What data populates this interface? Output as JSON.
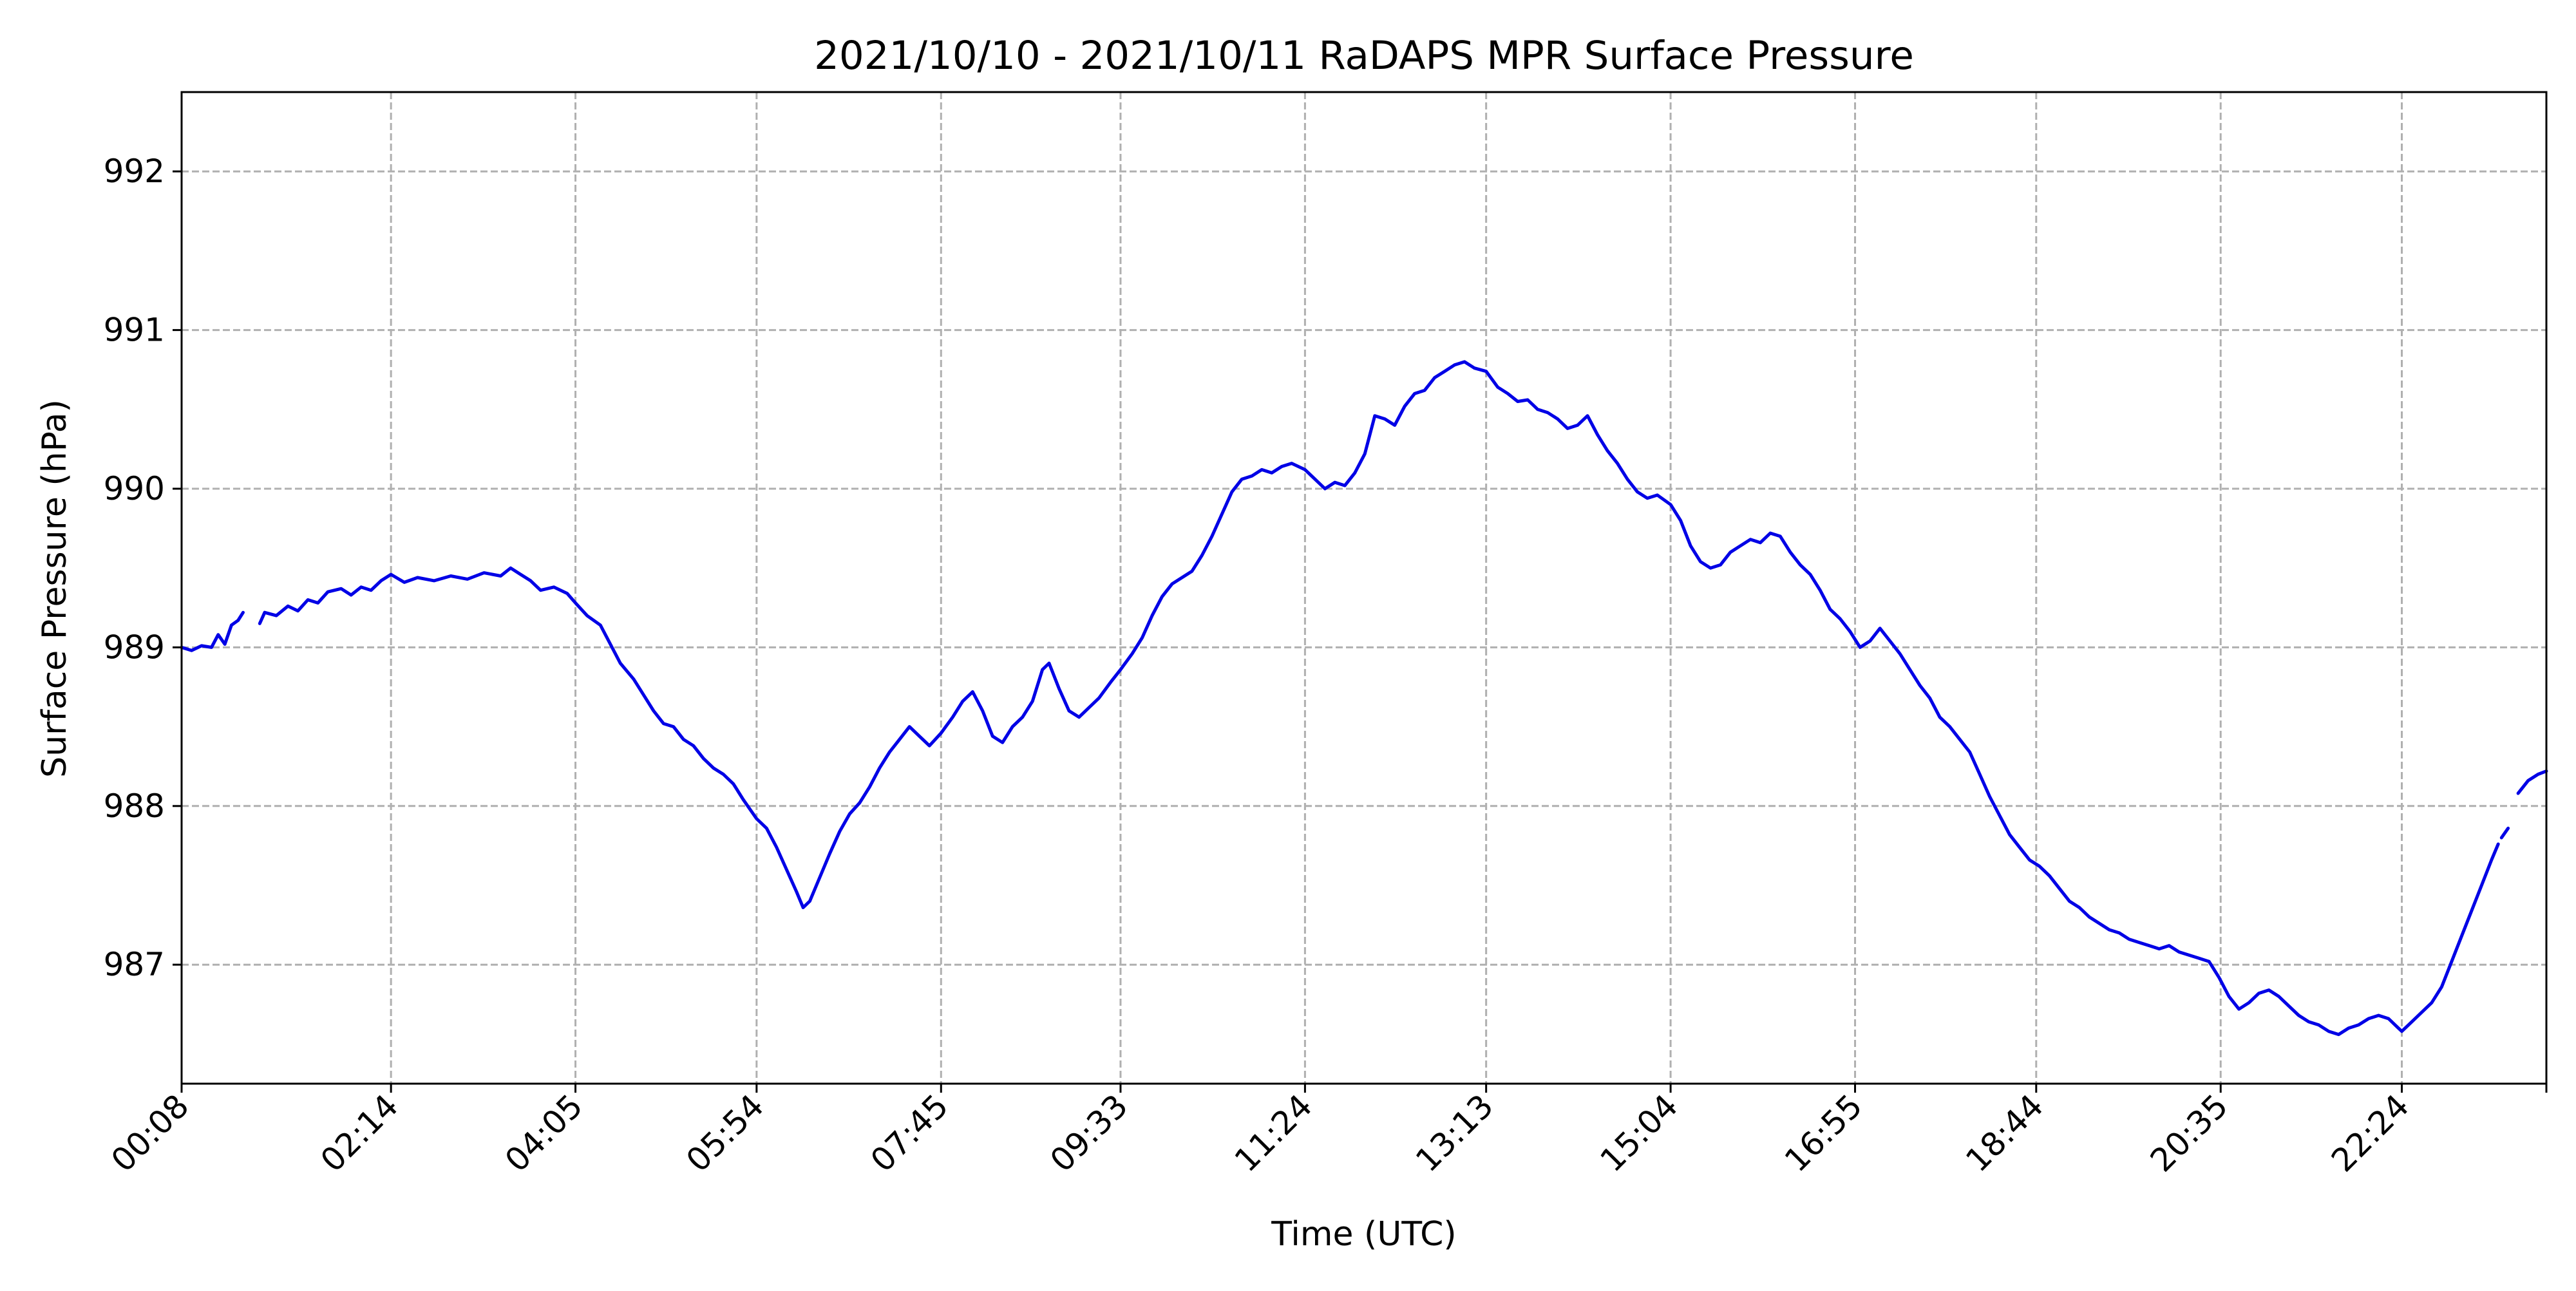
{
  "chart_data": {
    "type": "line",
    "title": "2021/10/10 - 2021/10/11 RaDAPS MPR Surface Pressure",
    "xlabel": "Time (UTC)",
    "ylabel": "Surface Pressure (hPa)",
    "x_ticks": [
      "00:08",
      "02:14",
      "04:05",
      "05:54",
      "07:45",
      "09:33",
      "11:24",
      "13:13",
      "15:04",
      "16:55",
      "18:44",
      "20:35",
      "22:24"
    ],
    "y_ticks": [
      987,
      988,
      989,
      990,
      991,
      992
    ],
    "xlim": [
      "00:08",
      "23:51"
    ],
    "ylim": [
      986.25,
      992.5
    ],
    "grid": true,
    "line_color": "#0000e6",
    "series": [
      {
        "segments": [
          [
            [
              "00:08",
              989.0
            ],
            [
              "00:14",
              988.98
            ],
            [
              "00:20",
              989.01
            ],
            [
              "00:26",
              989.0
            ],
            [
              "00:30",
              989.08
            ],
            [
              "00:34",
              989.02
            ],
            [
              "00:38",
              989.14
            ],
            [
              "00:42",
              989.17
            ],
            [
              "00:45",
              989.22
            ]
          ],
          [
            [
              "00:55",
              989.15
            ],
            [
              "00:58",
              989.22
            ],
            [
              "01:05",
              989.2
            ],
            [
              "01:12",
              989.26
            ],
            [
              "01:18",
              989.23
            ],
            [
              "01:24",
              989.3
            ],
            [
              "01:30",
              989.28
            ],
            [
              "01:36",
              989.35
            ],
            [
              "01:44",
              989.37
            ],
            [
              "01:50",
              989.33
            ],
            [
              "01:56",
              989.38
            ],
            [
              "02:02",
              989.36
            ],
            [
              "02:08",
              989.42
            ],
            [
              "02:14",
              989.46
            ],
            [
              "02:22",
              989.41
            ],
            [
              "02:30",
              989.44
            ],
            [
              "02:40",
              989.42
            ],
            [
              "02:50",
              989.45
            ],
            [
              "03:00",
              989.43
            ],
            [
              "03:10",
              989.47
            ],
            [
              "03:20",
              989.45
            ],
            [
              "03:26",
              989.5
            ],
            [
              "03:32",
              989.46
            ],
            [
              "03:38",
              989.42
            ],
            [
              "03:44",
              989.36
            ],
            [
              "03:52",
              989.38
            ],
            [
              "04:00",
              989.34
            ],
            [
              "04:05",
              989.28
            ],
            [
              "04:12",
              989.2
            ],
            [
              "04:20",
              989.14
            ],
            [
              "04:26",
              989.02
            ],
            [
              "04:32",
              988.9
            ],
            [
              "04:40",
              988.8
            ],
            [
              "04:46",
              988.7
            ],
            [
              "04:52",
              988.6
            ],
            [
              "04:58",
              988.52
            ],
            [
              "05:04",
              988.5
            ],
            [
              "05:10",
              988.42
            ],
            [
              "05:16",
              988.38
            ],
            [
              "05:22",
              988.3
            ],
            [
              "05:28",
              988.24
            ],
            [
              "05:34",
              988.2
            ],
            [
              "05:40",
              988.14
            ],
            [
              "05:46",
              988.04
            ],
            [
              "05:54",
              987.92
            ],
            [
              "06:00",
              987.86
            ],
            [
              "06:06",
              987.74
            ],
            [
              "06:12",
              987.6
            ],
            [
              "06:18",
              987.46
            ],
            [
              "06:22",
              987.36
            ],
            [
              "06:26",
              987.4
            ],
            [
              "06:32",
              987.55
            ],
            [
              "06:38",
              987.7
            ],
            [
              "06:44",
              987.84
            ],
            [
              "06:50",
              987.95
            ],
            [
              "06:56",
              988.02
            ],
            [
              "07:02",
              988.12
            ],
            [
              "07:08",
              988.24
            ],
            [
              "07:14",
              988.34
            ],
            [
              "07:20",
              988.42
            ],
            [
              "07:26",
              988.5
            ],
            [
              "07:32",
              988.44
            ],
            [
              "07:38",
              988.38
            ],
            [
              "07:45",
              988.46
            ],
            [
              "07:52",
              988.56
            ],
            [
              "07:58",
              988.66
            ],
            [
              "08:04",
              988.72
            ],
            [
              "08:10",
              988.6
            ],
            [
              "08:16",
              988.44
            ],
            [
              "08:22",
              988.4
            ],
            [
              "08:28",
              988.5
            ],
            [
              "08:34",
              988.56
            ],
            [
              "08:40",
              988.66
            ],
            [
              "08:46",
              988.86
            ],
            [
              "08:50",
              988.9
            ],
            [
              "08:56",
              988.74
            ],
            [
              "09:02",
              988.6
            ],
            [
              "09:08",
              988.56
            ],
            [
              "09:14",
              988.62
            ],
            [
              "09:20",
              988.68
            ],
            [
              "09:27",
              988.78
            ],
            [
              "09:33",
              988.86
            ],
            [
              "09:40",
              988.96
            ],
            [
              "09:46",
              989.06
            ],
            [
              "09:52",
              989.2
            ],
            [
              "09:58",
              989.32
            ],
            [
              "10:04",
              989.4
            ],
            [
              "10:10",
              989.44
            ],
            [
              "10:16",
              989.48
            ],
            [
              "10:22",
              989.58
            ],
            [
              "10:28",
              989.7
            ],
            [
              "10:34",
              989.84
            ],
            [
              "10:40",
              989.98
            ],
            [
              "10:46",
              990.06
            ],
            [
              "10:52",
              990.08
            ],
            [
              "10:58",
              990.12
            ],
            [
              "11:04",
              990.1
            ],
            [
              "11:10",
              990.14
            ],
            [
              "11:16",
              990.16
            ],
            [
              "11:24",
              990.12
            ],
            [
              "11:30",
              990.06
            ],
            [
              "11:36",
              990.0
            ],
            [
              "11:42",
              990.04
            ],
            [
              "11:48",
              990.02
            ],
            [
              "11:54",
              990.1
            ],
            [
              "12:00",
              990.22
            ],
            [
              "12:06",
              990.46
            ],
            [
              "12:12",
              990.44
            ],
            [
              "12:18",
              990.4
            ],
            [
              "12:24",
              990.52
            ],
            [
              "12:30",
              990.6
            ],
            [
              "12:36",
              990.62
            ],
            [
              "12:42",
              990.7
            ],
            [
              "12:48",
              990.74
            ],
            [
              "12:54",
              990.78
            ],
            [
              "13:00",
              990.8
            ],
            [
              "13:06",
              990.76
            ],
            [
              "13:13",
              990.74
            ],
            [
              "13:20",
              990.64
            ],
            [
              "13:26",
              990.6
            ],
            [
              "13:32",
              990.55
            ],
            [
              "13:38",
              990.56
            ],
            [
              "13:44",
              990.5
            ],
            [
              "13:50",
              990.48
            ],
            [
              "13:56",
              990.44
            ],
            [
              "14:02",
              990.38
            ],
            [
              "14:08",
              990.4
            ],
            [
              "14:14",
              990.46
            ],
            [
              "14:20",
              990.34
            ],
            [
              "14:26",
              990.24
            ],
            [
              "14:32",
              990.16
            ],
            [
              "14:38",
              990.06
            ],
            [
              "14:44",
              989.98
            ],
            [
              "14:50",
              989.94
            ],
            [
              "14:56",
              989.96
            ],
            [
              "15:04",
              989.9
            ],
            [
              "15:10",
              989.8
            ],
            [
              "15:16",
              989.64
            ],
            [
              "15:22",
              989.54
            ],
            [
              "15:28",
              989.5
            ],
            [
              "15:34",
              989.52
            ],
            [
              "15:40",
              989.6
            ],
            [
              "15:46",
              989.64
            ],
            [
              "15:52",
              989.68
            ],
            [
              "15:58",
              989.66
            ],
            [
              "16:04",
              989.72
            ],
            [
              "16:10",
              989.7
            ],
            [
              "16:16",
              989.6
            ],
            [
              "16:22",
              989.52
            ],
            [
              "16:28",
              989.46
            ],
            [
              "16:34",
              989.36
            ],
            [
              "16:40",
              989.24
            ],
            [
              "16:46",
              989.18
            ],
            [
              "16:52",
              989.1
            ],
            [
              "16:58",
              989.0
            ],
            [
              "17:04",
              989.04
            ],
            [
              "17:10",
              989.12
            ],
            [
              "17:16",
              989.04
            ],
            [
              "17:22",
              988.96
            ],
            [
              "17:28",
              988.86
            ],
            [
              "17:34",
              988.76
            ],
            [
              "17:40",
              988.68
            ],
            [
              "17:46",
              988.56
            ],
            [
              "17:52",
              988.5
            ],
            [
              "17:58",
              988.42
            ],
            [
              "18:04",
              988.34
            ],
            [
              "18:10",
              988.2
            ],
            [
              "18:16",
              988.06
            ],
            [
              "18:22",
              987.94
            ],
            [
              "18:28",
              987.82
            ],
            [
              "18:34",
              987.74
            ],
            [
              "18:40",
              987.66
            ],
            [
              "18:46",
              987.62
            ],
            [
              "18:52",
              987.56
            ],
            [
              "18:58",
              987.48
            ],
            [
              "19:04",
              987.4
            ],
            [
              "19:10",
              987.36
            ],
            [
              "19:16",
              987.3
            ],
            [
              "19:22",
              987.26
            ],
            [
              "19:28",
              987.22
            ],
            [
              "19:34",
              987.2
            ],
            [
              "19:40",
              987.16
            ],
            [
              "19:46",
              987.14
            ],
            [
              "19:52",
              987.12
            ],
            [
              "19:58",
              987.1
            ],
            [
              "20:04",
              987.12
            ],
            [
              "20:10",
              987.08
            ],
            [
              "20:16",
              987.06
            ],
            [
              "20:22",
              987.04
            ],
            [
              "20:28",
              987.02
            ],
            [
              "20:34",
              986.92
            ],
            [
              "20:40",
              986.8
            ],
            [
              "20:46",
              986.72
            ],
            [
              "20:52",
              986.76
            ],
            [
              "20:58",
              986.82
            ],
            [
              "21:04",
              986.84
            ],
            [
              "21:10",
              986.8
            ],
            [
              "21:16",
              986.74
            ],
            [
              "21:22",
              986.68
            ],
            [
              "21:28",
              986.64
            ],
            [
              "21:34",
              986.62
            ],
            [
              "21:40",
              986.58
            ],
            [
              "21:46",
              986.56
            ],
            [
              "21:52",
              986.6
            ],
            [
              "21:58",
              986.62
            ],
            [
              "22:04",
              986.66
            ],
            [
              "22:10",
              986.68
            ],
            [
              "22:16",
              986.66
            ],
            [
              "22:22",
              986.6
            ],
            [
              "22:24",
              986.58
            ],
            [
              "22:30",
              986.64
            ],
            [
              "22:36",
              986.7
            ],
            [
              "22:42",
              986.76
            ],
            [
              "22:48",
              986.86
            ],
            [
              "22:54",
              987.02
            ],
            [
              "23:00",
              987.18
            ],
            [
              "23:06",
              987.34
            ],
            [
              "23:12",
              987.5
            ],
            [
              "23:18",
              987.66
            ],
            [
              "23:22",
              987.76
            ]
          ],
          [
            [
              "23:24",
              987.8
            ],
            [
              "23:28",
              987.86
            ]
          ],
          [
            [
              "23:34",
              988.08
            ],
            [
              "23:40",
              988.16
            ],
            [
              "23:46",
              988.2
            ],
            [
              "23:51",
              988.22
            ]
          ]
        ]
      }
    ]
  }
}
